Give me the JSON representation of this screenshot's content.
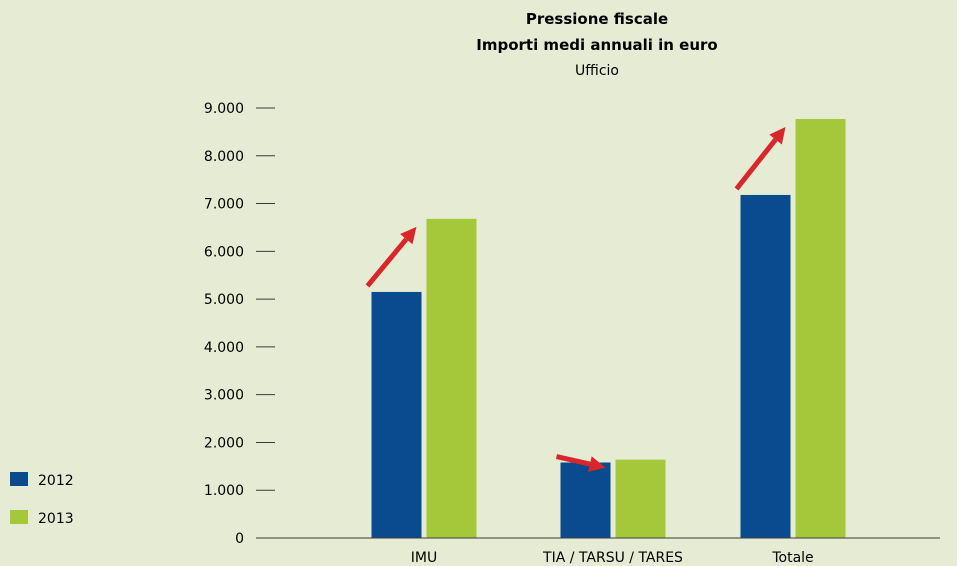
{
  "chart_data": {
    "type": "bar",
    "title": "Pressione fiscale",
    "subtitle": "Importi medi annuali in euro",
    "subtitle2": "Ufficio",
    "categories": [
      "IMU",
      "TIA / TARSU / TARES",
      "Totale"
    ],
    "series": [
      {
        "name": "2012",
        "color": "#0a4a8e",
        "values": [
          5150,
          1580,
          7180
        ]
      },
      {
        "name": "2013",
        "color": "#a5c83b",
        "values": [
          6680,
          1640,
          8770
        ]
      }
    ],
    "yticks": [
      {
        "value": 0,
        "label": "0"
      },
      {
        "value": 1000,
        "label": "1.000"
      },
      {
        "value": 2000,
        "label": "2.000"
      },
      {
        "value": 3000,
        "label": "3.000"
      },
      {
        "value": 4000,
        "label": "4.000"
      },
      {
        "value": 5000,
        "label": "5.000"
      },
      {
        "value": 6000,
        "label": "6.000"
      },
      {
        "value": 7000,
        "label": "7.000"
      },
      {
        "value": 8000,
        "label": "8.000"
      },
      {
        "value": 9000,
        "label": "9.000"
      }
    ],
    "ylim": [
      0,
      9000
    ],
    "grid": false,
    "legend_placement": "bottom-left",
    "arrow_color": "#d9262b",
    "annotations": [
      {
        "type": "arrow",
        "category": "IMU",
        "from_series": "2012",
        "to_series": "2013"
      },
      {
        "type": "arrow",
        "category": "TIA / TARSU / TARES",
        "from_series": "2012",
        "to_series": "2013"
      },
      {
        "type": "arrow",
        "category": "Totale",
        "from_series": "2012",
        "to_series": "2013"
      }
    ]
  }
}
